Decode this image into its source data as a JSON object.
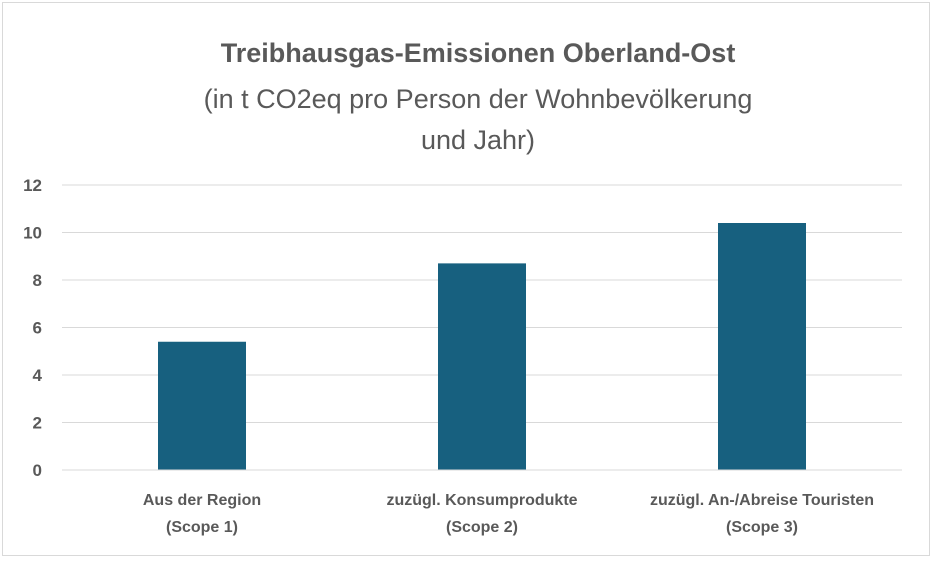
{
  "chart_data": {
    "type": "bar",
    "title": "Treibhausgas-Emissionen Oberland-Ost",
    "subtitle_lines": [
      "(in t CO2eq pro Person der Wohnbevölkerung",
      "und Jahr)"
    ],
    "categories": [
      [
        "Aus der Region",
        "(Scope 1)"
      ],
      [
        "zuzügl. Konsumprodukte",
        "(Scope 2)"
      ],
      [
        "zuzügl. An-/Abreise Touristen",
        "(Scope 3)"
      ]
    ],
    "values": [
      5.4,
      8.7,
      10.4
    ],
    "ylim": [
      0,
      12
    ],
    "yticks": [
      "0",
      "2",
      "4",
      "6",
      "8",
      "10",
      "12"
    ],
    "xlabel": "",
    "ylabel": "",
    "grid": true,
    "bar_color": "#17607f"
  }
}
